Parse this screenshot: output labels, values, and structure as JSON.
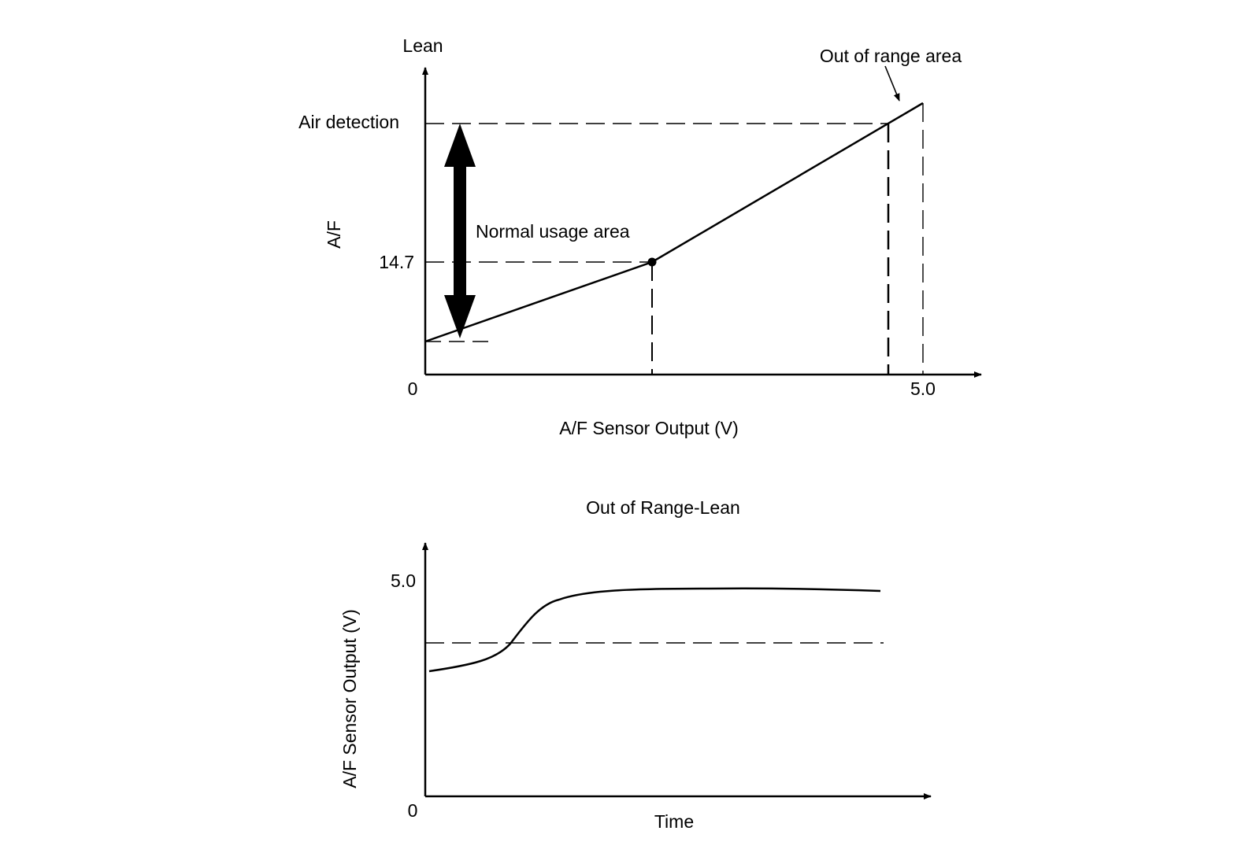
{
  "colors": {
    "ink": "#000000",
    "background": "#ffffff"
  },
  "top_chart": {
    "y_top_label": "Lean",
    "y_axis_label": "A/F",
    "air_detection_label": "Air detection",
    "stoich_label": "14.7",
    "origin_label": "0",
    "x_tick_label": "5.0",
    "x_axis_label": "A/F Sensor Output (V)",
    "normal_usage_label": "Normal usage area",
    "out_of_range_label": "Out of range area"
  },
  "bottom_chart": {
    "title": "Out of Range-Lean",
    "y_axis_label": "A/F Sensor Output (V)",
    "y_tick_label": "5.0",
    "origin_label": "0",
    "x_axis_label": "Time"
  }
}
